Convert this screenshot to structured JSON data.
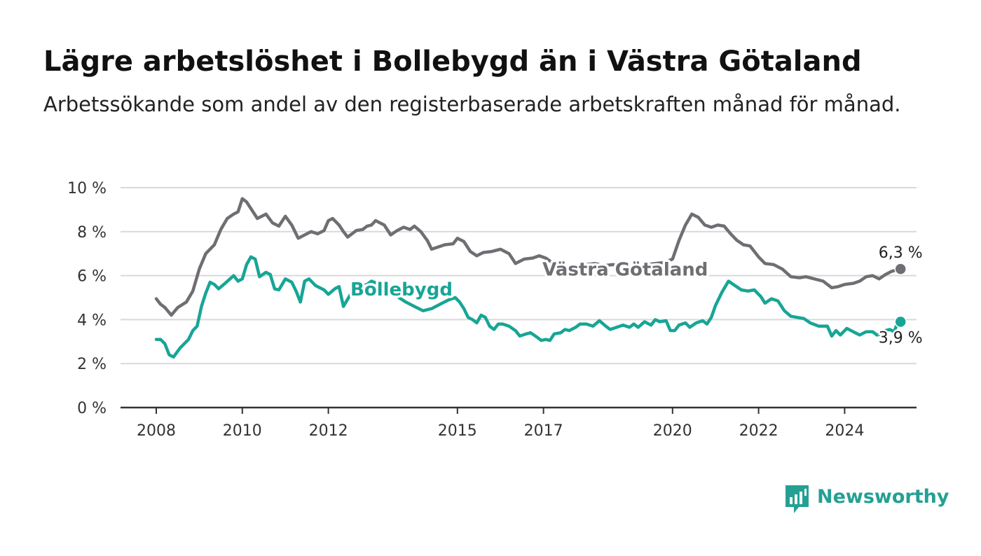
{
  "title": "Lägre arbetslöshet i Bollebygd än i Västra Götaland",
  "subtitle": "Arbetssökande som andel av den registerbaserade arbetskraften månad för månad.",
  "logo": {
    "text": "Newsworthy",
    "icon": "newsworthy-logo-icon"
  },
  "colors": {
    "bollebygd": "#17a596",
    "vastra": "#6e6e73",
    "grid": "#d9d9d9",
    "axis": "#333333"
  },
  "chart_data": {
    "type": "line",
    "title": "Lägre arbetslöshet i Bollebygd än i Västra Götaland",
    "subtitle": "Arbetssökande som andel av den registerbaserade arbetskraften månad för månad.",
    "x_ticks": [
      "2008",
      "2010",
      "2012",
      "2015",
      "2017",
      "2020",
      "2022",
      "2024"
    ],
    "y_ticks": [
      "0 %",
      "2 %",
      "4 %",
      "6 %",
      "8 %",
      "10 %"
    ],
    "ylim": [
      0,
      10
    ],
    "xlim": [
      2007.2,
      2025.5
    ],
    "grid": true,
    "series": [
      {
        "name": "Västra Götaland",
        "end_label": "6,3 %",
        "points": [
          [
            2008.0,
            4.95
          ],
          [
            2008.1,
            4.7
          ],
          [
            2008.2,
            4.55
          ],
          [
            2008.35,
            4.2
          ],
          [
            2008.5,
            4.55
          ],
          [
            2008.7,
            4.8
          ],
          [
            2008.85,
            5.3
          ],
          [
            2009.0,
            6.3
          ],
          [
            2009.15,
            7.0
          ],
          [
            2009.35,
            7.4
          ],
          [
            2009.5,
            8.1
          ],
          [
            2009.65,
            8.6
          ],
          [
            2009.8,
            8.8
          ],
          [
            2009.9,
            8.9
          ],
          [
            2010.0,
            9.5
          ],
          [
            2010.1,
            9.35
          ],
          [
            2010.25,
            8.9
          ],
          [
            2010.35,
            8.6
          ],
          [
            2010.55,
            8.8
          ],
          [
            2010.7,
            8.4
          ],
          [
            2010.85,
            8.25
          ],
          [
            2011.0,
            8.7
          ],
          [
            2011.15,
            8.3
          ],
          [
            2011.3,
            7.7
          ],
          [
            2011.45,
            7.85
          ],
          [
            2011.6,
            8.0
          ],
          [
            2011.75,
            7.9
          ],
          [
            2011.9,
            8.05
          ],
          [
            2012.0,
            8.5
          ],
          [
            2012.1,
            8.6
          ],
          [
            2012.25,
            8.3
          ],
          [
            2012.35,
            8.0
          ],
          [
            2012.45,
            7.75
          ],
          [
            2012.65,
            8.05
          ],
          [
            2012.8,
            8.1
          ],
          [
            2012.9,
            8.25
          ],
          [
            2013.0,
            8.3
          ],
          [
            2013.1,
            8.5
          ],
          [
            2013.3,
            8.3
          ],
          [
            2013.45,
            7.85
          ],
          [
            2013.6,
            8.05
          ],
          [
            2013.75,
            8.2
          ],
          [
            2013.9,
            8.1
          ],
          [
            2014.0,
            8.25
          ],
          [
            2014.15,
            8.0
          ],
          [
            2014.3,
            7.6
          ],
          [
            2014.4,
            7.2
          ],
          [
            2014.55,
            7.3
          ],
          [
            2014.7,
            7.4
          ],
          [
            2014.9,
            7.45
          ],
          [
            2015.0,
            7.7
          ],
          [
            2015.15,
            7.55
          ],
          [
            2015.3,
            7.1
          ],
          [
            2015.45,
            6.9
          ],
          [
            2015.6,
            7.05
          ],
          [
            2015.8,
            7.1
          ],
          [
            2016.0,
            7.2
          ],
          [
            2016.2,
            7.0
          ],
          [
            2016.35,
            6.55
          ],
          [
            2016.55,
            6.75
          ],
          [
            2016.75,
            6.8
          ],
          [
            2016.9,
            6.9
          ],
          [
            2017.05,
            6.8
          ],
          [
            2017.2,
            6.6
          ],
          [
            2017.4,
            6.45
          ],
          [
            2017.6,
            6.35
          ],
          [
            2017.8,
            6.4
          ],
          [
            2018.0,
            6.5
          ],
          [
            2018.2,
            6.55
          ],
          [
            2018.4,
            6.45
          ],
          [
            2018.6,
            6.5
          ],
          [
            2018.8,
            6.45
          ],
          [
            2019.0,
            6.4
          ],
          [
            2019.2,
            6.45
          ],
          [
            2019.4,
            6.5
          ],
          [
            2019.6,
            6.55
          ],
          [
            2019.8,
            6.6
          ],
          [
            2020.0,
            6.75
          ],
          [
            2020.15,
            7.6
          ],
          [
            2020.3,
            8.3
          ],
          [
            2020.45,
            8.8
          ],
          [
            2020.6,
            8.65
          ],
          [
            2020.75,
            8.3
          ],
          [
            2020.9,
            8.2
          ],
          [
            2021.05,
            8.3
          ],
          [
            2021.2,
            8.25
          ],
          [
            2021.35,
            7.9
          ],
          [
            2021.5,
            7.6
          ],
          [
            2021.65,
            7.4
          ],
          [
            2021.8,
            7.35
          ],
          [
            2022.0,
            6.85
          ],
          [
            2022.15,
            6.55
          ],
          [
            2022.35,
            6.5
          ],
          [
            2022.55,
            6.3
          ],
          [
            2022.75,
            5.95
          ],
          [
            2022.95,
            5.9
          ],
          [
            2023.1,
            5.95
          ],
          [
            2023.3,
            5.85
          ],
          [
            2023.5,
            5.75
          ],
          [
            2023.7,
            5.45
          ],
          [
            2023.85,
            5.5
          ],
          [
            2024.0,
            5.6
          ],
          [
            2024.2,
            5.65
          ],
          [
            2024.35,
            5.75
          ],
          [
            2024.5,
            5.95
          ],
          [
            2024.65,
            6.0
          ],
          [
            2024.8,
            5.85
          ],
          [
            2024.95,
            6.05
          ],
          [
            2025.1,
            6.2
          ],
          [
            2025.3,
            6.3
          ]
        ]
      },
      {
        "name": "Bollebygd",
        "end_label": "3,9 %",
        "points": [
          [
            2008.0,
            3.1
          ],
          [
            2008.1,
            3.1
          ],
          [
            2008.2,
            2.9
          ],
          [
            2008.3,
            2.4
          ],
          [
            2008.4,
            2.3
          ],
          [
            2008.55,
            2.7
          ],
          [
            2008.65,
            2.9
          ],
          [
            2008.75,
            3.1
          ],
          [
            2008.85,
            3.5
          ],
          [
            2008.95,
            3.7
          ],
          [
            2009.05,
            4.6
          ],
          [
            2009.15,
            5.2
          ],
          [
            2009.25,
            5.7
          ],
          [
            2009.35,
            5.6
          ],
          [
            2009.45,
            5.4
          ],
          [
            2009.6,
            5.65
          ],
          [
            2009.8,
            6.0
          ],
          [
            2009.9,
            5.75
          ],
          [
            2010.0,
            5.85
          ],
          [
            2010.1,
            6.5
          ],
          [
            2010.2,
            6.85
          ],
          [
            2010.3,
            6.75
          ],
          [
            2010.4,
            5.95
          ],
          [
            2010.55,
            6.15
          ],
          [
            2010.65,
            6.05
          ],
          [
            2010.75,
            5.4
          ],
          [
            2010.85,
            5.35
          ],
          [
            2011.0,
            5.85
          ],
          [
            2011.15,
            5.7
          ],
          [
            2011.25,
            5.3
          ],
          [
            2011.35,
            4.8
          ],
          [
            2011.45,
            5.75
          ],
          [
            2011.55,
            5.85
          ],
          [
            2011.7,
            5.55
          ],
          [
            2011.8,
            5.45
          ],
          [
            2011.9,
            5.35
          ],
          [
            2012.0,
            5.15
          ],
          [
            2012.15,
            5.4
          ],
          [
            2012.25,
            5.5
          ],
          [
            2012.35,
            4.6
          ],
          [
            2012.5,
            5.1
          ],
          [
            2012.65,
            5.25
          ],
          [
            2012.8,
            5.55
          ],
          [
            2012.9,
            5.6
          ],
          [
            2013.0,
            5.75
          ],
          [
            2013.2,
            5.6
          ],
          [
            2013.4,
            5.35
          ],
          [
            2013.6,
            5.05
          ],
          [
            2013.8,
            4.8
          ],
          [
            2014.0,
            4.6
          ],
          [
            2014.2,
            4.4
          ],
          [
            2014.4,
            4.5
          ],
          [
            2014.6,
            4.7
          ],
          [
            2014.8,
            4.9
          ],
          [
            2014.95,
            5.0
          ],
          [
            2015.05,
            4.8
          ],
          [
            2015.15,
            4.5
          ],
          [
            2015.25,
            4.1
          ],
          [
            2015.35,
            4.0
          ],
          [
            2015.45,
            3.85
          ],
          [
            2015.55,
            4.2
          ],
          [
            2015.65,
            4.1
          ],
          [
            2015.75,
            3.7
          ],
          [
            2015.85,
            3.55
          ],
          [
            2015.95,
            3.8
          ],
          [
            2016.05,
            3.8
          ],
          [
            2016.2,
            3.7
          ],
          [
            2016.35,
            3.5
          ],
          [
            2016.45,
            3.25
          ],
          [
            2016.6,
            3.35
          ],
          [
            2016.7,
            3.4
          ],
          [
            2016.85,
            3.2
          ],
          [
            2016.95,
            3.05
          ],
          [
            2017.05,
            3.1
          ],
          [
            2017.15,
            3.05
          ],
          [
            2017.25,
            3.35
          ],
          [
            2017.4,
            3.4
          ],
          [
            2017.5,
            3.55
          ],
          [
            2017.6,
            3.5
          ],
          [
            2017.75,
            3.65
          ],
          [
            2017.85,
            3.8
          ],
          [
            2018.0,
            3.8
          ],
          [
            2018.15,
            3.7
          ],
          [
            2018.3,
            3.95
          ],
          [
            2018.45,
            3.7
          ],
          [
            2018.55,
            3.55
          ],
          [
            2018.7,
            3.65
          ],
          [
            2018.85,
            3.75
          ],
          [
            2019.0,
            3.65
          ],
          [
            2019.1,
            3.8
          ],
          [
            2019.2,
            3.65
          ],
          [
            2019.35,
            3.9
          ],
          [
            2019.5,
            3.75
          ],
          [
            2019.6,
            4.0
          ],
          [
            2019.7,
            3.9
          ],
          [
            2019.85,
            3.95
          ],
          [
            2019.95,
            3.5
          ],
          [
            2020.05,
            3.5
          ],
          [
            2020.15,
            3.75
          ],
          [
            2020.3,
            3.85
          ],
          [
            2020.4,
            3.65
          ],
          [
            2020.55,
            3.85
          ],
          [
            2020.7,
            3.95
          ],
          [
            2020.8,
            3.8
          ],
          [
            2020.9,
            4.1
          ],
          [
            2021.0,
            4.65
          ],
          [
            2021.15,
            5.25
          ],
          [
            2021.3,
            5.75
          ],
          [
            2021.45,
            5.55
          ],
          [
            2021.6,
            5.35
          ],
          [
            2021.75,
            5.3
          ],
          [
            2021.9,
            5.35
          ],
          [
            2022.05,
            5.05
          ],
          [
            2022.15,
            4.75
          ],
          [
            2022.3,
            4.95
          ],
          [
            2022.45,
            4.85
          ],
          [
            2022.6,
            4.4
          ],
          [
            2022.75,
            4.15
          ],
          [
            2022.9,
            4.1
          ],
          [
            2023.05,
            4.05
          ],
          [
            2023.2,
            3.85
          ],
          [
            2023.4,
            3.7
          ],
          [
            2023.6,
            3.7
          ],
          [
            2023.7,
            3.25
          ],
          [
            2023.8,
            3.5
          ],
          [
            2023.9,
            3.3
          ],
          [
            2024.05,
            3.6
          ],
          [
            2024.2,
            3.45
          ],
          [
            2024.35,
            3.3
          ],
          [
            2024.5,
            3.45
          ],
          [
            2024.65,
            3.45
          ],
          [
            2024.75,
            3.3
          ],
          [
            2024.85,
            3.35
          ],
          [
            2024.95,
            3.5
          ],
          [
            2025.05,
            3.55
          ],
          [
            2025.15,
            3.45
          ],
          [
            2025.25,
            3.95
          ],
          [
            2025.3,
            3.9
          ]
        ]
      }
    ],
    "annotations": [
      {
        "text": "Västra Götaland",
        "series": "Västra Götaland",
        "x": 2018.9,
        "y": 6.0
      },
      {
        "text": "Bollebygd",
        "series": "Bollebygd",
        "x": 2013.7,
        "y": 5.1
      }
    ]
  }
}
